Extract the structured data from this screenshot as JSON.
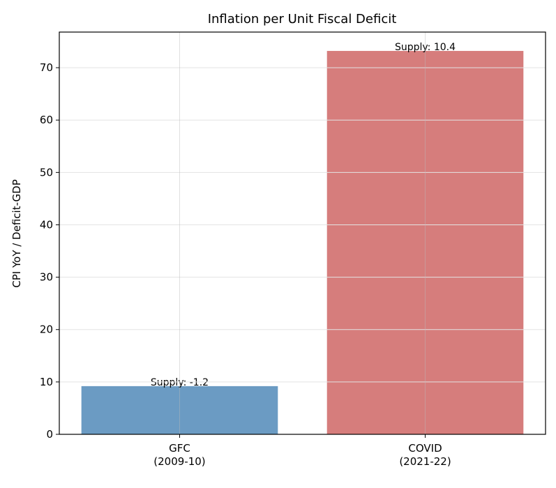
{
  "chart_data": {
    "type": "bar",
    "title": "Inflation per Unit Fiscal Deficit",
    "xlabel": "",
    "ylabel": "CPI YoY / Deficit-GDP",
    "categories": [
      "GFC\n(2009-10)",
      "COVID\n(2021-22)"
    ],
    "values": [
      9.2,
      73.2
    ],
    "bar_labels": [
      "Supply: -1.2",
      "Supply: 10.4"
    ],
    "colors": [
      "#6b9bc3",
      "#d67d7c"
    ],
    "ylim": [
      0,
      76.8
    ],
    "yticks": [
      0,
      10,
      20,
      30,
      40,
      50,
      60,
      70
    ],
    "grid": true,
    "legend": "none"
  }
}
